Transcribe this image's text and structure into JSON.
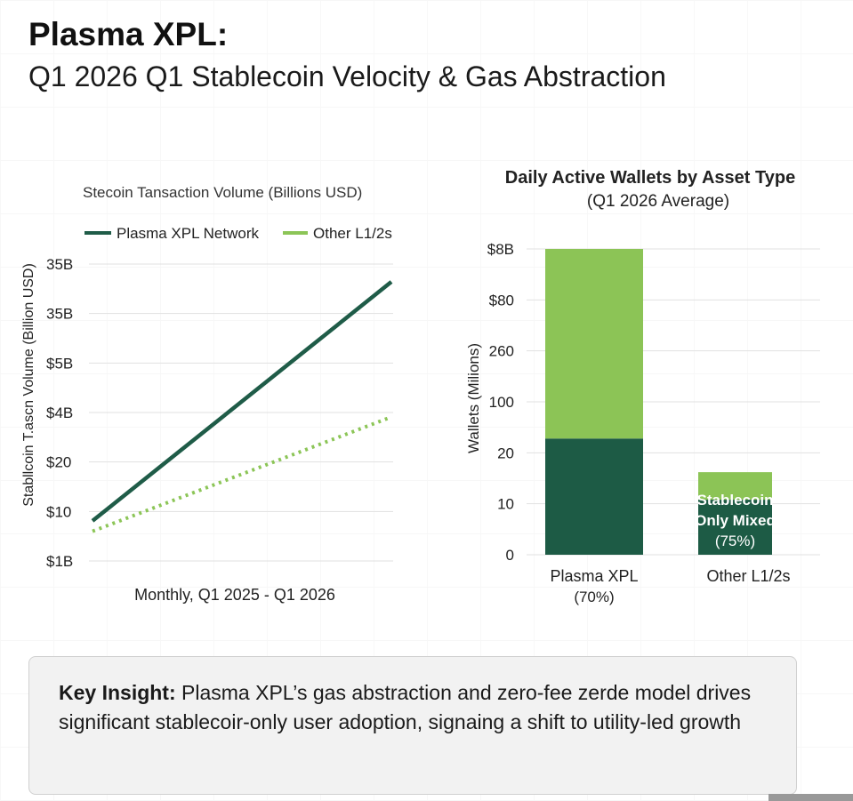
{
  "header": {
    "title": "Plasma XPL:",
    "subtitle": "Q1 2026 Q1  Stablecoin Velocity & Gas Abstraction"
  },
  "colors": {
    "dark_green": "#1f5c48",
    "light_green": "#8cc557",
    "bar_dark": "#1d5b45",
    "bar_light": "#8cc456"
  },
  "chart_data": [
    {
      "type": "line",
      "title": "Stecoin Tansaction Volume (Billions USD)",
      "xlabel": "Monthly, Q1 2025 - Q1 2026",
      "ylabel": "Stabllcoin T.ascn Volume (Billion USD)",
      "y_tick_labels": [
        "35B",
        "35B",
        "$5B",
        "$4B",
        "$20",
        "$10",
        "$1B"
      ],
      "grid": true,
      "legend_position": "top",
      "series": [
        {
          "name": "Plasma XPL Network",
          "style": "solid",
          "color": "#1f5c48",
          "y_frac": [
            0.135,
            0.94
          ]
        },
        {
          "name": "Other L1/2s",
          "style": "dotted",
          "color": "#8cc557",
          "y_frac": [
            0.1,
            0.485
          ]
        }
      ]
    },
    {
      "type": "bar",
      "stacked": true,
      "title": "Daily Active Wallets by Asset Type",
      "subtitle": "(Q1 2026 Average)",
      "ylabel": "Wallets (Milions)",
      "y_tick_labels": [
        "$8B",
        "$80",
        "260",
        "100",
        "20",
        "10",
        "0"
      ],
      "grid": true,
      "categories": [
        {
          "label": "Plasma XPL",
          "sublabel": "(70%)"
        },
        {
          "label": "Other L1/2s",
          "sublabel": ""
        }
      ],
      "series": [
        {
          "name": "",
          "color": "#1d5b45",
          "frac": [
            0.38,
            0.18
          ]
        },
        {
          "name": "",
          "color": "#8cc456",
          "frac": [
            0.62,
            0.09
          ]
        }
      ],
      "annotations": [
        {
          "category": 1,
          "lines": [
            "Stablecoin",
            "Only Mixed",
            "(75%)"
          ]
        }
      ]
    }
  ],
  "insight": {
    "label": "Key Insight:",
    "text": " Plasma XPL’s gas abstraction and zero-fee zerde model drives significant stablecoir-only user adoption, signaing a shift to utility-led growth"
  }
}
